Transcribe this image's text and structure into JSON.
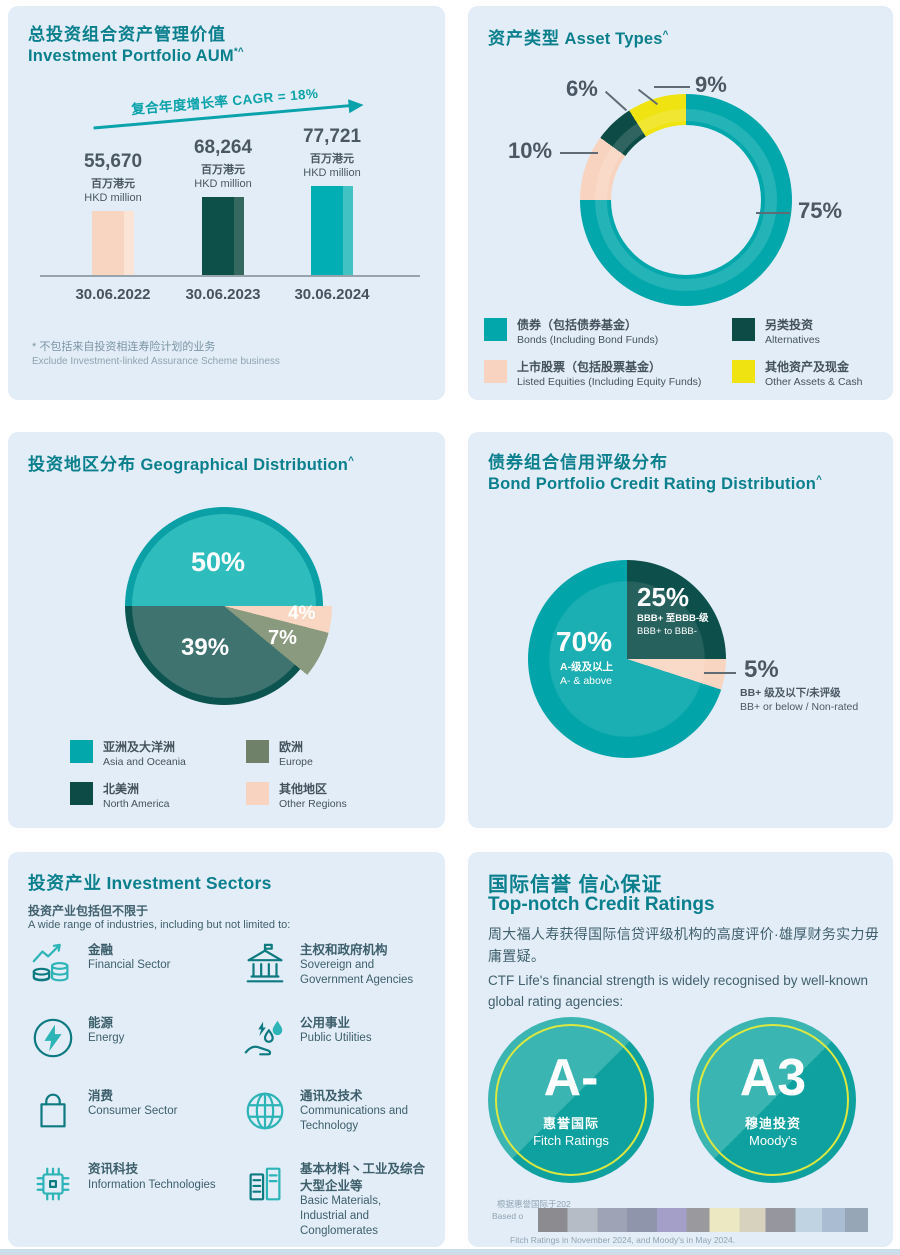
{
  "chart_data": [
    {
      "type": "bar",
      "title": "总投资组合资产管理价值 Investment Portfolio AUM",
      "annotation": "复合年度增长率 CAGR = 18%",
      "categories": [
        "30.06.2022",
        "30.06.2023",
        "30.06.2024"
      ],
      "values": [
        55670,
        68264,
        77721
      ],
      "ylabel": "百万港元 HKD million",
      "bar_colors": [
        "#f8d5c0",
        "#0d4f49",
        "#00aeb4"
      ]
    },
    {
      "type": "pie",
      "variant": "donut",
      "title": "资产类型 Asset Types",
      "labels": [
        "债券（包括债券基金） Bonds (Including Bond Funds)",
        "上市股票（包括股票基金） Listed Equities (Including Equity Funds)",
        "另类投资 Alternatives",
        "其他资产及现金 Other Assets & Cash"
      ],
      "values": [
        75,
        10,
        6,
        9
      ],
      "colors": [
        "#01a7ab",
        "#f8d4c0",
        "#0d4b46",
        "#efe412"
      ]
    },
    {
      "type": "pie",
      "title": "投资地区分布 Geographical Distribution",
      "labels": [
        "亚洲及大洋洲 Asia and Oceania",
        "北美洲 North America",
        "欧洲 Europe",
        "其他地区 Other Regions"
      ],
      "values": [
        50,
        39,
        7,
        4
      ],
      "colors": [
        "#2fbcbd",
        "#3e7370",
        "#8a9a7e",
        "#f9d6c1"
      ]
    },
    {
      "type": "pie",
      "title": "债券组合信用评级分布 Bond Portfolio Credit Rating Distribution",
      "labels": [
        "A-级及以上 A- & above",
        "BBB+ 至BBB-级 BBB+ to BBB-",
        "BB+ 级及以下/未评级 BB+ or below / Non-rated"
      ],
      "values": [
        70,
        25,
        5
      ],
      "colors": [
        "#01a5a9",
        "#0d4f4b",
        "#f8d5c1"
      ]
    }
  ],
  "aum": {
    "title_zh": "总投资组合资产管理价值",
    "title_en": "Investment Portfolio AUM",
    "title_sup": "*^",
    "cagr_label": "复合年度增长率 CAGR = 18%",
    "bars": [
      {
        "value": "55,670",
        "unit_zh": "百万港元",
        "unit_en": "HKD million",
        "date": "30.06.2022"
      },
      {
        "value": "68,264",
        "unit_zh": "百万港元",
        "unit_en": "HKD million",
        "date": "30.06.2023"
      },
      {
        "value": "77,721",
        "unit_zh": "百万港元",
        "unit_en": "HKD million",
        "date": "30.06.2024"
      }
    ],
    "footnote_zh": "* 不包括来自投资相连寿险计划的业务",
    "footnote_en": "Exclude Investment-linked Assurance Scheme business"
  },
  "asset_types": {
    "title_zh": "资产类型",
    "title_en": "Asset Types",
    "title_sup": "^",
    "callouts": {
      "bonds": "75%",
      "equities": "10%",
      "alts": "6%",
      "other": "9%"
    },
    "legend": [
      {
        "zh": "债券（包括债券基金）",
        "en": "Bonds (Including Bond Funds)"
      },
      {
        "zh": "上市股票（包括股票基金）",
        "en": "Listed Equities (Including Equity Funds)"
      },
      {
        "zh": "另类投资",
        "en": "Alternatives"
      },
      {
        "zh": "其他资产及现金",
        "en": "Other Assets & Cash"
      }
    ]
  },
  "geo": {
    "title_zh": "投资地区分布",
    "title_en": "Geographical Distribution",
    "title_sup": "^",
    "labels": {
      "asia": "50%",
      "north_america": "39%",
      "europe": "7%",
      "other": "4%"
    },
    "legend": [
      {
        "zh": "亚洲及大洋洲",
        "en": "Asia and Oceania"
      },
      {
        "zh": "欧洲",
        "en": "Europe"
      },
      {
        "zh": "北美洲",
        "en": "North America"
      },
      {
        "zh": "其他地区",
        "en": "Other Regions"
      }
    ]
  },
  "credit": {
    "title_zh": "债券组合信用评级分布",
    "title_en": "Bond Portfolio Credit Rating Distribution",
    "title_sup": "^",
    "slice_a": {
      "pct": "70%",
      "zh": "A-级及以上",
      "en": "A- & above"
    },
    "slice_bbb": {
      "pct": "25%",
      "zh": "BBB+ 至BBB-级",
      "en": "BBB+ to BBB-"
    },
    "slice_bb": {
      "pct": "5%",
      "zh": "BB+ 级及以下/未评级",
      "en": "BB+ or below / Non-rated"
    }
  },
  "sectors": {
    "title_zh": "投资产业",
    "title_en": "Investment Sectors",
    "sub_zh": "投资产业包括但不限于",
    "sub_en": "A wide range of industries, including but not limited to:",
    "items": [
      {
        "zh": "金融",
        "en": "Financial Sector",
        "icon": "chart-coins-icon"
      },
      {
        "zh": "主权和政府机构",
        "en": "Sovereign and Government Agencies",
        "icon": "government-building-icon"
      },
      {
        "zh": "能源",
        "en": "Energy",
        "icon": "lightning-circle-icon"
      },
      {
        "zh": "公用事业",
        "en": "Public Utilities",
        "icon": "hand-energy-icon"
      },
      {
        "zh": "消费",
        "en": "Consumer Sector",
        "icon": "shopping-bag-icon"
      },
      {
        "zh": "通讯及技术",
        "en": "Communications and Technology",
        "icon": "globe-grid-icon"
      },
      {
        "zh": "资讯科技",
        "en": "Information Technologies",
        "icon": "cpu-chip-icon"
      },
      {
        "zh": "基本材料丶工业及综合大型企业等",
        "en": "Basic Materials, Industrial and Conglomerates",
        "icon": "documents-icon"
      }
    ]
  },
  "ratings": {
    "title_zh": "国际信誉 信心保证",
    "title_en": "Top-notch Credit Ratings",
    "body_zh": "周大福人寿获得国际信贷评级机构的高度评价·雄厚财务实力毋庸置疑。",
    "body_en": "CTF Life's financial strength is widely recognised by well-known global rating agencies:",
    "badges": [
      {
        "grade": "A-",
        "org_zh": "惠誉国际",
        "org_en": "Fitch Ratings"
      },
      {
        "grade": "A3",
        "org_zh": "穆迪投资",
        "org_en": "Moody's"
      }
    ],
    "footnote_line1": "根据惠誉国际于202",
    "footnote_line2": "Based o",
    "footnote_line3": "Fitch Ratings in November 2024, and Moody's in May 2024."
  },
  "colors": {
    "panel_bg": "#e3edf7",
    "title_teal": "#0a7f8d",
    "teal": "#01a7ab",
    "dark_teal": "#0d4b46",
    "peach": "#f8d4c0",
    "yellow": "#efe412",
    "olive": "#6f8269",
    "geo_medium": "#3e7370",
    "badge_teal": "#14a7a2",
    "badge_ring": "#dce83f"
  }
}
